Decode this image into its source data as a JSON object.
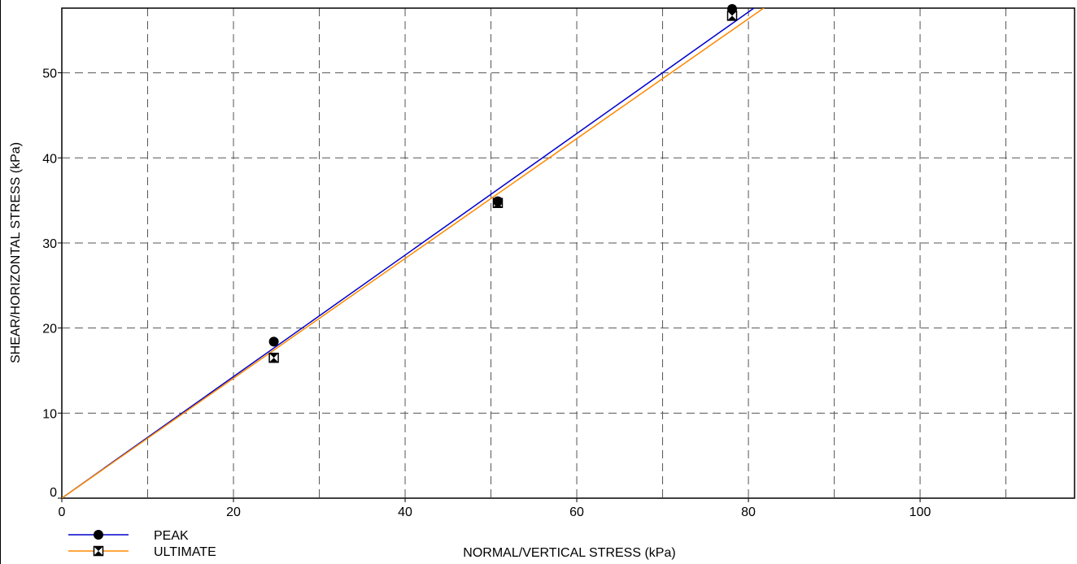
{
  "chart_data": {
    "type": "scatter",
    "title": "",
    "xlabel": "NORMAL/VERTICAL STRESS (kPa)",
    "ylabel": "SHEAR/HORIZONTAL STRESS (kPa)",
    "xlim": [
      0,
      118
    ],
    "ylim": [
      0,
      57.6
    ],
    "x_ticks": [
      0,
      20,
      40,
      60,
      80,
      100
    ],
    "y_ticks": [
      0,
      10,
      20,
      30,
      40,
      50
    ],
    "x_grid": [
      10,
      20,
      30,
      40,
      50,
      60,
      70,
      80,
      90,
      100,
      110
    ],
    "y_grid": [
      10,
      20,
      30,
      40,
      50
    ],
    "grid": true,
    "grid_style": "dashed",
    "legend_position": "bottom-left",
    "series": [
      {
        "name": "PEAK",
        "color": "#0000cc",
        "marker": "circle",
        "points": [
          {
            "x": 24.7,
            "y": 18.4
          },
          {
            "x": 50.8,
            "y": 34.9
          },
          {
            "x": 78.1,
            "y": 57.5
          }
        ],
        "fit_line": {
          "x0": 0,
          "y0": 0,
          "slope": 0.7143
        }
      },
      {
        "name": "ULTIMATE",
        "color": "#ff8800",
        "marker": "bowtie-square",
        "points": [
          {
            "x": 24.7,
            "y": 16.5
          },
          {
            "x": 50.8,
            "y": 34.7
          },
          {
            "x": 78.1,
            "y": 56.7
          }
        ],
        "fit_line": {
          "x0": 0,
          "y0": 0,
          "slope": 0.7044
        }
      }
    ]
  }
}
